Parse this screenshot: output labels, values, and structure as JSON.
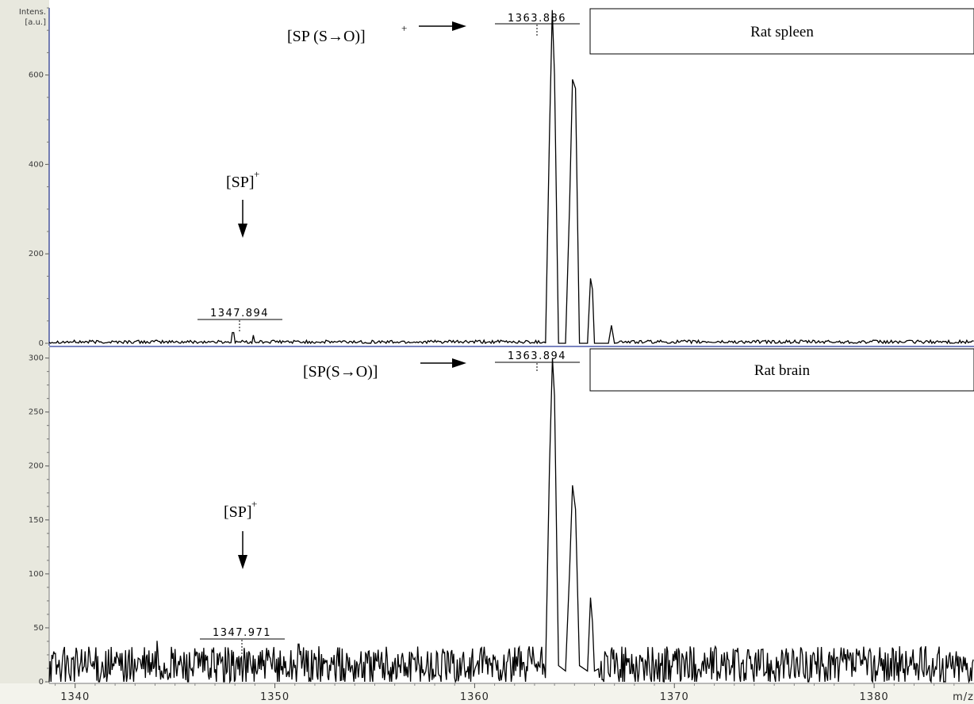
{
  "chart_data": [
    {
      "type": "line",
      "panel": "top",
      "title": "Rat spleen",
      "ylabel": "Intens.",
      "yunit": "[a.u.]",
      "xlim": [
        1338.7,
        1385.0
      ],
      "ylim": [
        0,
        750
      ],
      "yticks": [
        0,
        200,
        400,
        600
      ],
      "peak_labels": [
        {
          "x": 1363.886,
          "text": "1363.886"
        },
        {
          "x": 1347.894,
          "text": "1347.894"
        }
      ],
      "annotations": [
        {
          "text": "[SP (S→O)]",
          "sup": "+",
          "x": 1363.886
        },
        {
          "text": "[SP]",
          "sup": "+",
          "x": 1347.894
        }
      ],
      "series": [
        {
          "x": [
            1363.55,
            1363.75,
            1363.886,
            1364.0,
            1364.2,
            1364.55,
            1364.75,
            1364.9,
            1365.05,
            1365.25,
            1365.65,
            1365.8,
            1365.9,
            1366.0,
            1366.2,
            1366.7,
            1366.85,
            1367.0
          ],
          "values": [
            0,
            470,
            745,
            600,
            0,
            0,
            300,
            590,
            570,
            0,
            0,
            145,
            120,
            0,
            0,
            0,
            40,
            0
          ]
        }
      ],
      "noise_level": 4
    },
    {
      "type": "line",
      "panel": "bottom",
      "title": "Rat brain",
      "xlabel": "m/z",
      "xlim": [
        1338.7,
        1385.0
      ],
      "ylim": [
        0,
        310
      ],
      "yticks": [
        0,
        50,
        100,
        150,
        200,
        250,
        300
      ],
      "xticks": [
        1340,
        1350,
        1360,
        1370,
        1380
      ],
      "peak_labels": [
        {
          "x": 1363.894,
          "text": "1363.894"
        },
        {
          "x": 1347.971,
          "text": "1347.971"
        }
      ],
      "annotations": [
        {
          "text": "[SP(S→O)]",
          "sup": "",
          "x": 1363.894
        },
        {
          "text": "[SP]",
          "sup": "+",
          "x": 1347.971
        }
      ],
      "series": [
        {
          "x": [
            1363.55,
            1363.75,
            1363.894,
            1364.0,
            1364.2,
            1364.55,
            1364.75,
            1364.9,
            1365.05,
            1365.25,
            1365.65,
            1365.8,
            1365.9,
            1366.0,
            1366.2
          ],
          "values": [
            10,
            200,
            300,
            265,
            15,
            10,
            100,
            182,
            160,
            15,
            10,
            78,
            55,
            10,
            12
          ]
        }
      ],
      "noise_level": 18
    }
  ],
  "panels": {
    "top": {
      "ylabel": "Intens.",
      "yunit": "[a.u.]",
      "ytick_labels": [
        "0",
        "200",
        "400",
        "600"
      ],
      "box_label": "Rat spleen",
      "main_peak_label": "1363.886",
      "minor_peak_label": "1347.894",
      "ann_main": "[SP (S→O)]",
      "ann_main_sup": "+",
      "ann_minor": "[SP]",
      "ann_minor_sup": "+"
    },
    "bottom": {
      "ytick_labels": [
        "0",
        "50",
        "100",
        "150",
        "200",
        "250",
        "300"
      ],
      "box_label": "Rat brain",
      "main_peak_label": "1363.894",
      "minor_peak_label": "1347.971",
      "ann_main": "[SP(S→O)]",
      "ann_minor": "[SP]",
      "ann_minor_sup": "+",
      "xtick_labels": [
        "1340",
        "1350",
        "1360",
        "1370",
        "1380"
      ],
      "xlabel": "m/z"
    }
  },
  "colors": {
    "line": "#000000",
    "axis_left": "#1f2f8a",
    "divider": "#2a3a9a",
    "left_strip": "#e8e8de"
  }
}
